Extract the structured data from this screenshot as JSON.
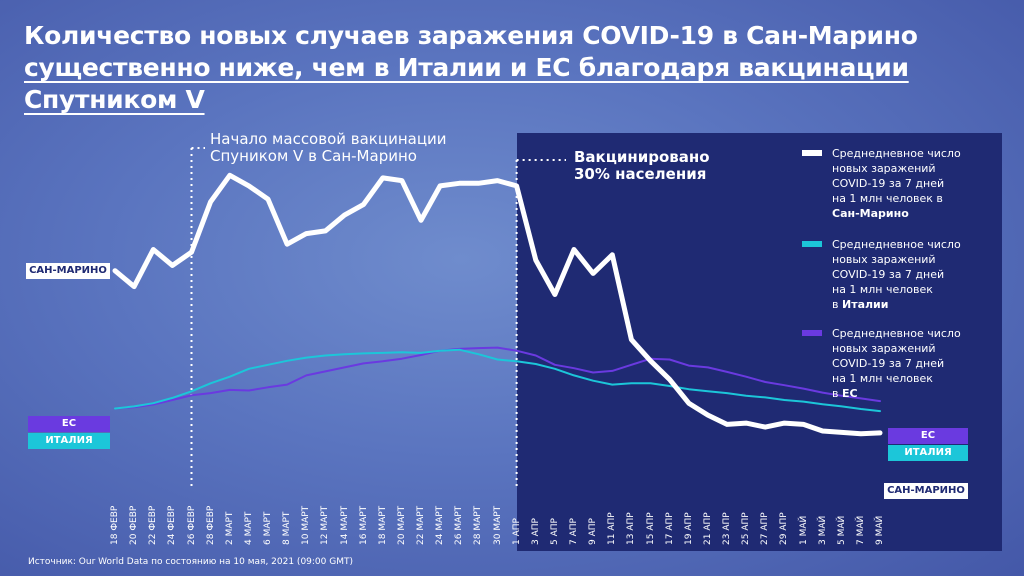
{
  "title": {
    "line1": "Количество новых случаев заражения COVID-19 в Сан-Марино",
    "line2": "существенно ниже, чем в Италии и ЕС благодаря вакцинации",
    "line3": "Спутником V"
  },
  "annotations": {
    "vaccination_start": [
      "Начало массовой вакцинации",
      "Спуником V в Сан-Марино"
    ],
    "vaccinated_30": [
      "Вакцинировано",
      "30% населения"
    ]
  },
  "legend": [
    {
      "lines": [
        "Среднедневное число",
        "новых заражений",
        "COVID-19 за 7 дней",
        "на 1 млн человек в"
      ],
      "bold": "Сан-Марино",
      "color": "#ffffff"
    },
    {
      "lines": [
        "Среднедневное число",
        "новых заражений",
        "COVID-19 за 7 дней",
        "на 1 млн человек",
        "в"
      ],
      "bold": "Италии",
      "color": "#1cc6d9"
    },
    {
      "lines": [
        "Среднедневное число",
        "новых заражений",
        "COVID-19 за 7 дней",
        "на 1 млн человек",
        "в"
      ],
      "bold": "ЕС",
      "color": "#6a3ae0"
    }
  ],
  "tags": {
    "san_marino_left": "САН-МАРИНО",
    "eu_left": "ЕС",
    "italy_left": "ИТАЛИЯ",
    "eu_right": "ЕС",
    "italy_right": "ИТАЛИЯ",
    "san_marino_right": "САН-МАРИНО"
  },
  "source": "Источник: Our World Data по состоянию на 10 мая, 2021 (09:00 GMT)",
  "colors": {
    "background": "#5a74bf",
    "panel": "#1f2a73",
    "san_marino": "#ffffff",
    "italy": "#1cc6d9",
    "eu": "#6a3ae0"
  },
  "chart_data": {
    "type": "line",
    "title": "Количество новых случаев заражения COVID-19 в Сан-Марино существенно ниже, чем в Италии и ЕС благодаря вакцинации Спутником V",
    "xlabel": "",
    "ylabel": "",
    "ylim": [
      0,
      1000
    ],
    "grid": false,
    "legend_position": "right",
    "x_tick_labels": [
      "18 ФЕВР",
      "20 ФЕВР",
      "22 ФЕВР",
      "24 ФЕВР",
      "26 ФЕВР",
      "28 ФЕВР",
      "2 МАРТ",
      "4 МАРТ",
      "6 МАРТ",
      "8 МАРТ",
      "10 МАРТ",
      "12 МАРТ",
      "14 МАРТ",
      "16 МАРТ",
      "18 МАРТ",
      "20 МАРТ",
      "22 МАРТ",
      "24 МАРТ",
      "26 МАРТ",
      "28 МАРТ",
      "30 МАРТ",
      "1 АПР",
      "3 АПР",
      "5 АПР",
      "7 АПР",
      "9 АПР",
      "11 АПР",
      "13 АПР",
      "15 АПР",
      "17 АПР",
      "19 АПР",
      "21 АПР",
      "23 АПР",
      "25 АПР",
      "27 АПР",
      "29 АПР",
      "1 МАЙ",
      "3 МАЙ",
      "5 МАЙ",
      "7 МАЙ",
      "9 МАЙ"
    ],
    "x": [
      0,
      2,
      4,
      6,
      8,
      10,
      12,
      14,
      16,
      18,
      20,
      22,
      24,
      26,
      28,
      30,
      32,
      34,
      36,
      38,
      40,
      42,
      44,
      46,
      48,
      50,
      52,
      54,
      56,
      58,
      60,
      62,
      64,
      66,
      68,
      70,
      72,
      74,
      76,
      78,
      80
    ],
    "series": [
      {
        "name": "Сан-Марино",
        "color": "#ffffff",
        "values": [
          620,
          560,
          700,
          640,
          690,
          880,
          980,
          940,
          890,
          720,
          760,
          770,
          830,
          870,
          970,
          960,
          810,
          940,
          950,
          950,
          960,
          940,
          660,
          530,
          700,
          610,
          680,
          360,
          280,
          210,
          120,
          75,
          40,
          45,
          30,
          45,
          40,
          15,
          10,
          5,
          8
        ]
      },
      {
        "name": "Италия",
        "color": "#1cc6d9",
        "values": [
          100,
          108,
          120,
          140,
          165,
          195,
          220,
          250,
          265,
          280,
          292,
          300,
          305,
          308,
          310,
          312,
          310,
          318,
          322,
          305,
          285,
          278,
          268,
          250,
          225,
          205,
          190,
          195,
          195,
          185,
          173,
          165,
          158,
          148,
          142,
          132,
          126,
          116,
          108,
          98,
          90
        ]
      },
      {
        "name": "ЕС",
        "color": "#6a3ae0",
        "values": [
          100,
          105,
          115,
          132,
          150,
          158,
          170,
          168,
          180,
          190,
          225,
          240,
          255,
          270,
          278,
          288,
          302,
          318,
          325,
          328,
          330,
          318,
          300,
          265,
          252,
          236,
          242,
          265,
          288,
          285,
          262,
          255,
          238,
          220,
          200,
          188,
          175,
          160,
          148,
          138,
          128
        ]
      }
    ]
  }
}
